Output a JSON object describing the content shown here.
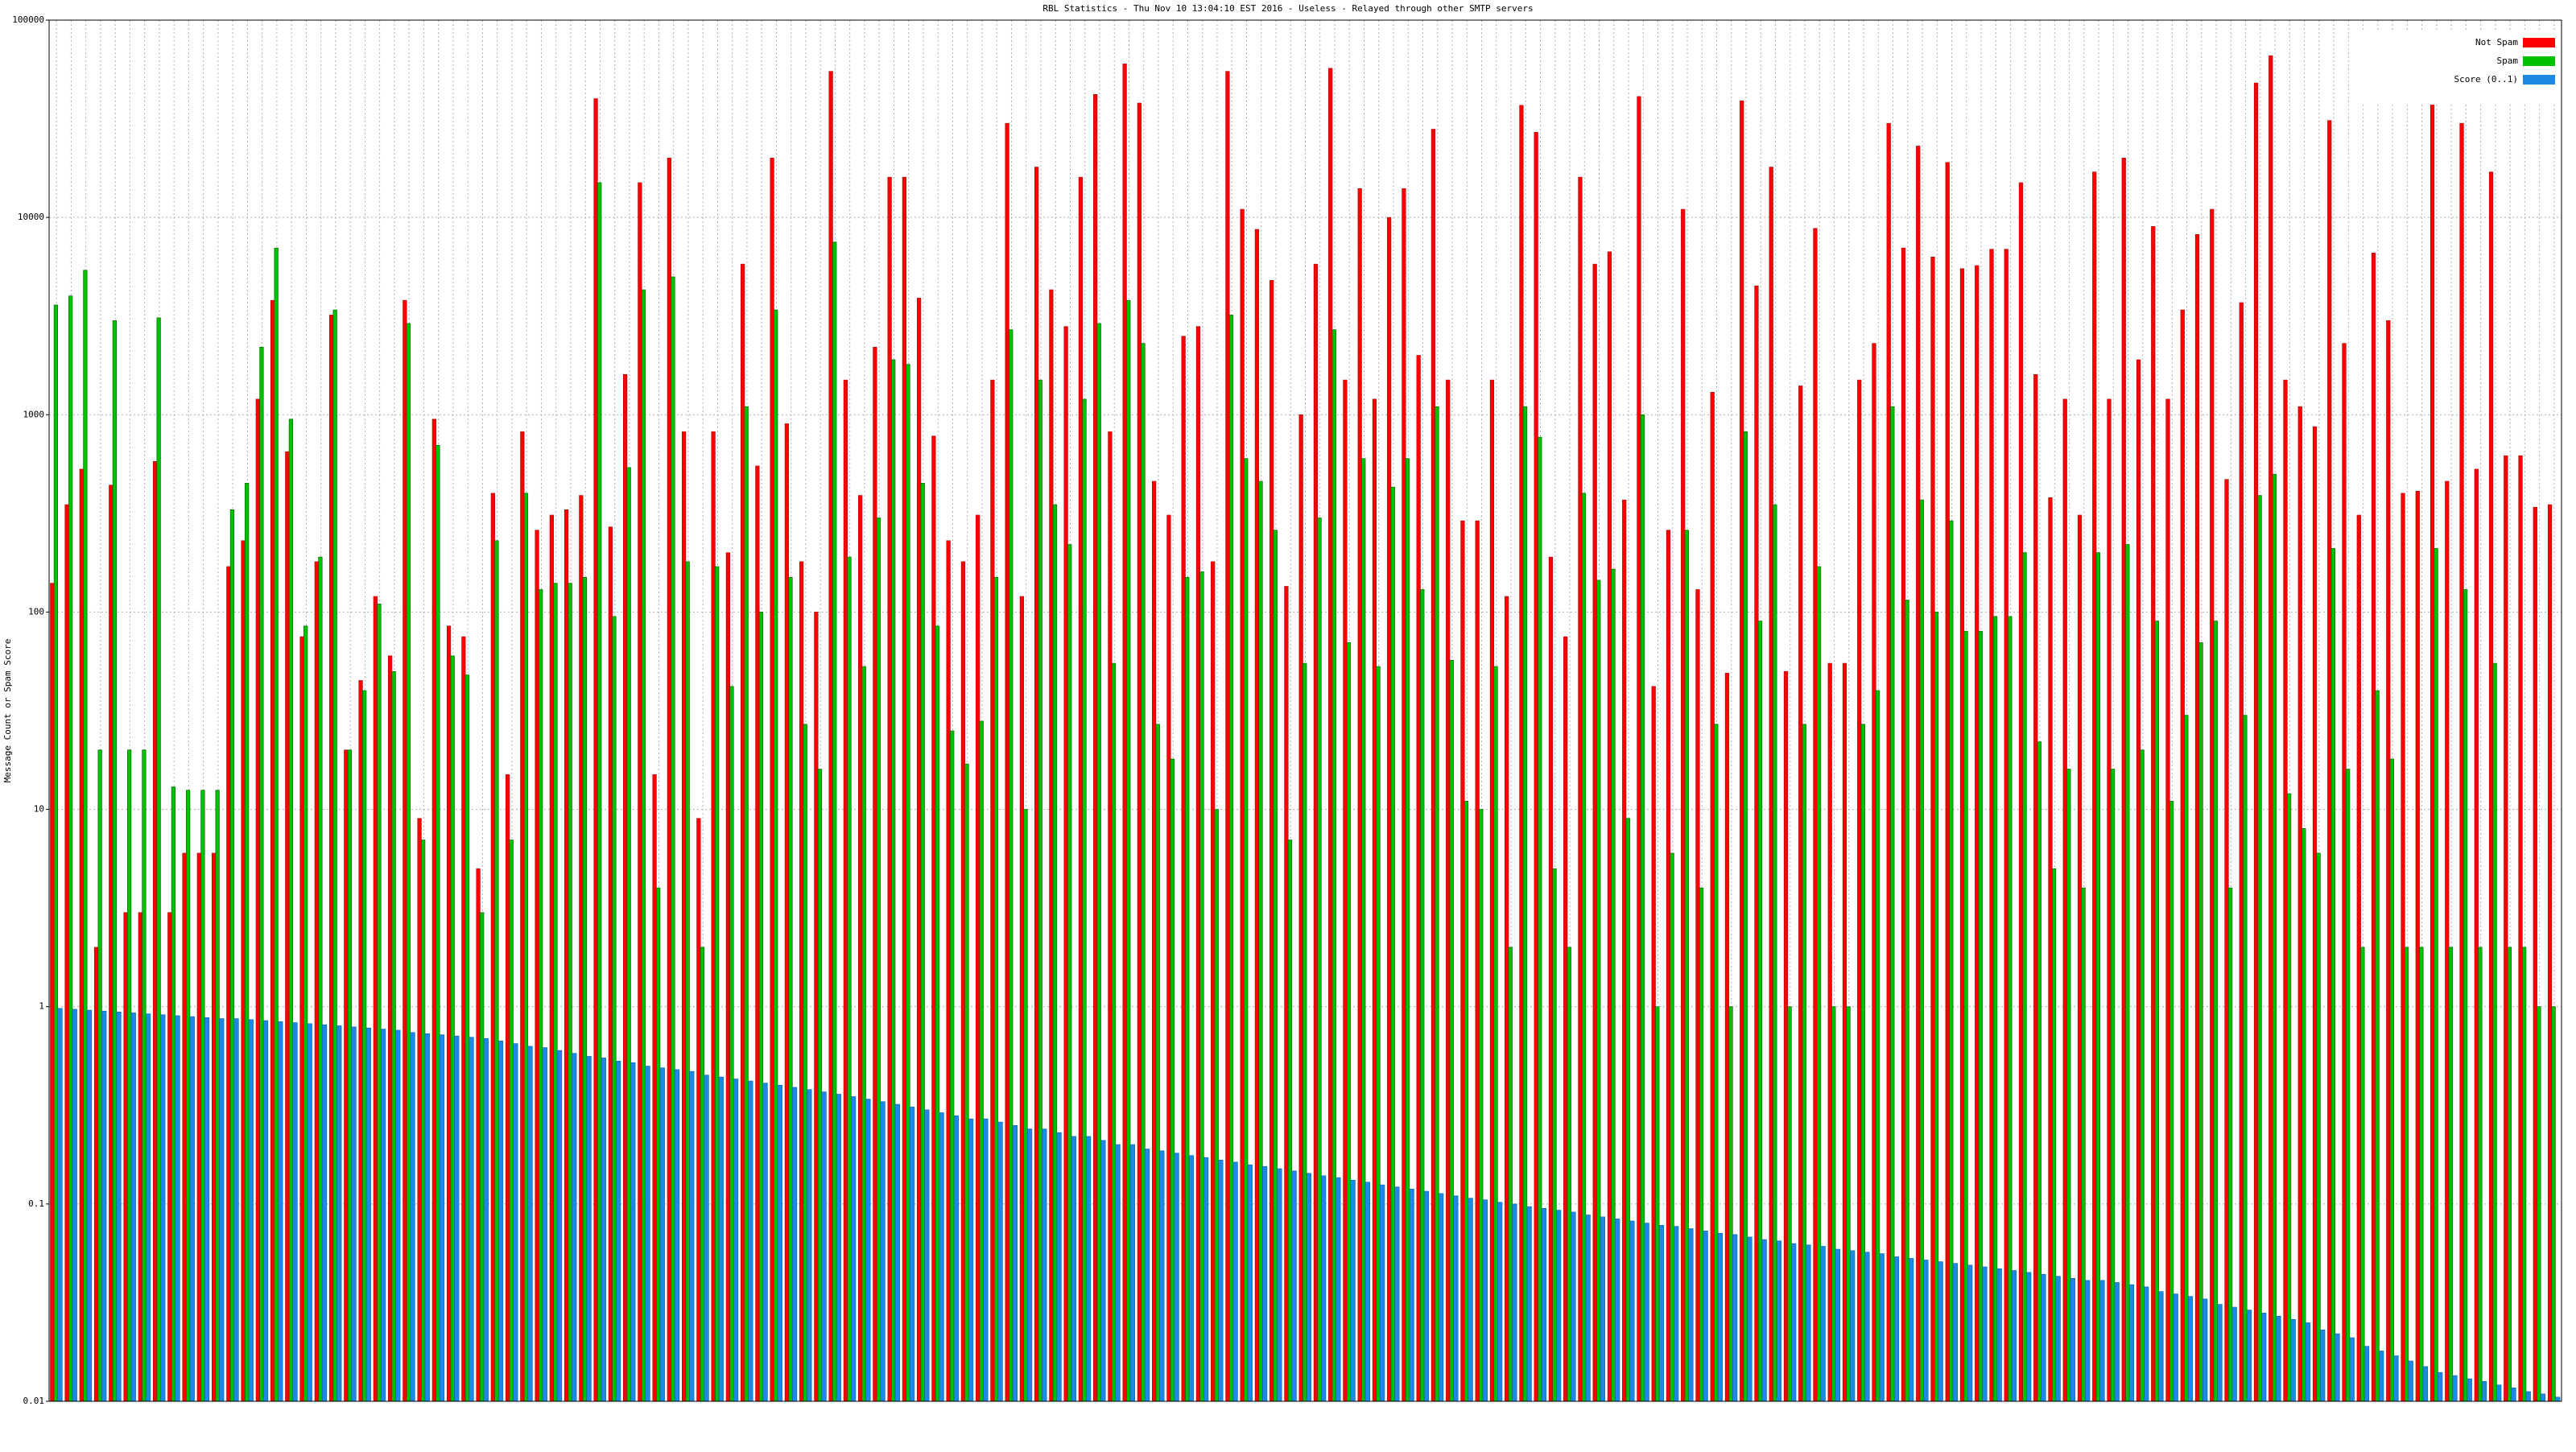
{
  "chart_data": {
    "type": "bar",
    "title": "RBL Statistics - Thu Nov 10 13:04:10 EST 2016 - Useless - Relayed through other SMTP servers",
    "y_label": "Message Count or Spam Score",
    "log_scale": true,
    "grid": true,
    "legend_position": "top-right",
    "ylim": [
      0.01,
      100000
    ],
    "yticks": [
      0.01,
      0.1,
      1,
      10,
      100,
      1000,
      10000,
      100000
    ],
    "series": [
      {
        "name": "Not Spam",
        "color": "#ff0000",
        "values": [
          140,
          350,
          530,
          2,
          440,
          3,
          3,
          580,
          3,
          6,
          6,
          6,
          170,
          230,
          1200,
          3800,
          650,
          75,
          180,
          3200,
          20,
          45,
          120,
          60,
          3800,
          9,
          950,
          85,
          75,
          5,
          400,
          15,
          820,
          260,
          310,
          330,
          390,
          40000,
          270,
          1600,
          15000,
          15,
          20000,
          820,
          9,
          820,
          200,
          5800,
          550,
          20000,
          900,
          180,
          100,
          55000,
          1500,
          390,
          2200,
          16000,
          16000,
          3900,
          780,
          230,
          180,
          310,
          1500,
          30000,
          120,
          18000,
          4300,
          2800,
          16000,
          42000,
          820,
          60000,
          38000,
          460,
          310,
          2500,
          2800,
          180,
          55000,
          11000,
          8700,
          4800,
          135,
          1000,
          5800,
          57000,
          1500,
          14000,
          1200,
          10000,
          14000,
          2000,
          28000,
          1500,
          290,
          290,
          1500,
          120,
          37000,
          27000,
          190,
          75,
          16000,
          5800,
          6700,
          370,
          41000,
          42,
          260,
          11000,
          130,
          1300,
          49,
          39000,
          4500,
          18000,
          50,
          1400,
          8800,
          55,
          55,
          1500,
          2300,
          30000,
          7000,
          23000,
          6300,
          19000,
          5500,
          5700,
          6900,
          6900,
          15000,
          1600,
          380,
          1200,
          310,
          17000,
          1200,
          20000,
          1900,
          9000,
          1200,
          3400,
          8200,
          11000,
          470,
          3700,
          48000,
          66000,
          1500,
          1100,
          870,
          31000,
          2300,
          310,
          6600,
          3000,
          400,
          410,
          45000,
          460,
          30000,
          530,
          17000,
          620,
          620,
          340,
          350
        ]
      },
      {
        "name": "Spam",
        "color": "#00c000",
        "values": [
          3600,
          4000,
          5400,
          20,
          3000,
          20,
          20,
          3100,
          13,
          12.5,
          12.5,
          12.5,
          330,
          450,
          2200,
          7000,
          950,
          85,
          190,
          3400,
          20,
          40,
          110,
          50,
          2900,
          7,
          700,
          60,
          48,
          3,
          230,
          7,
          400,
          130,
          140,
          140,
          150,
          15000,
          95,
          540,
          4300,
          4,
          5000,
          180,
          2,
          170,
          42,
          1100,
          100,
          3400,
          150,
          27,
          16,
          7500,
          190,
          53,
          300,
          1900,
          1800,
          450,
          85,
          25,
          17,
          28,
          150,
          2700,
          10,
          1500,
          350,
          220,
          1200,
          2900,
          55,
          3800,
          2300,
          27,
          18,
          150,
          160,
          10,
          3200,
          600,
          460,
          260,
          7,
          55,
          300,
          2700,
          70,
          600,
          53,
          430,
          600,
          130,
          1100,
          57,
          11,
          10,
          53,
          2,
          1100,
          770,
          5,
          2,
          400,
          145,
          165,
          9,
          1000,
          1,
          6,
          260,
          4,
          27,
          1,
          820,
          90,
          350,
          1,
          27,
          170,
          1,
          1,
          27,
          40,
          1100,
          115,
          370,
          100,
          290,
          80,
          80,
          95,
          95,
          200,
          22,
          5,
          16,
          4,
          200,
          16,
          220,
          20,
          90,
          11,
          30,
          70,
          90,
          4,
          30,
          390,
          500,
          12,
          8,
          6,
          210,
          16,
          2,
          40,
          18,
          2,
          2,
          210,
          2,
          130,
          2,
          55,
          2,
          2,
          1,
          1
        ]
      },
      {
        "name": "Score (0..1)",
        "color": "#1e88e5",
        "values": [
          0.98,
          0.97,
          0.96,
          0.95,
          0.94,
          0.93,
          0.92,
          0.91,
          0.9,
          0.89,
          0.88,
          0.87,
          0.87,
          0.86,
          0.85,
          0.84,
          0.83,
          0.82,
          0.81,
          0.8,
          0.79,
          0.78,
          0.77,
          0.76,
          0.74,
          0.73,
          0.72,
          0.71,
          0.7,
          0.69,
          0.67,
          0.65,
          0.63,
          0.62,
          0.6,
          0.58,
          0.56,
          0.55,
          0.53,
          0.52,
          0.5,
          0.49,
          0.48,
          0.47,
          0.45,
          0.44,
          0.43,
          0.42,
          0.41,
          0.4,
          0.39,
          0.38,
          0.37,
          0.36,
          0.35,
          0.34,
          0.33,
          0.32,
          0.31,
          0.3,
          0.29,
          0.28,
          0.27,
          0.27,
          0.26,
          0.25,
          0.24,
          0.24,
          0.23,
          0.22,
          0.22,
          0.21,
          0.2,
          0.2,
          0.19,
          0.186,
          0.181,
          0.176,
          0.172,
          0.167,
          0.163,
          0.158,
          0.155,
          0.151,
          0.147,
          0.143,
          0.139,
          0.136,
          0.132,
          0.129,
          0.125,
          0.122,
          0.119,
          0.116,
          0.113,
          0.11,
          0.107,
          0.105,
          0.102,
          0.1,
          0.097,
          0.095,
          0.093,
          0.091,
          0.088,
          0.086,
          0.084,
          0.082,
          0.08,
          0.078,
          0.077,
          0.075,
          0.073,
          0.071,
          0.07,
          0.068,
          0.066,
          0.065,
          0.063,
          0.062,
          0.061,
          0.059,
          0.058,
          0.057,
          0.056,
          0.054,
          0.053,
          0.052,
          0.051,
          0.05,
          0.049,
          0.048,
          0.047,
          0.046,
          0.045,
          0.044,
          0.043,
          0.042,
          0.041,
          0.041,
          0.04,
          0.039,
          0.038,
          0.036,
          0.035,
          0.034,
          0.033,
          0.031,
          0.03,
          0.029,
          0.028,
          0.027,
          0.026,
          0.025,
          0.023,
          0.022,
          0.021,
          0.019,
          0.018,
          0.017,
          0.016,
          0.015,
          0.014,
          0.0135,
          0.013,
          0.0126,
          0.0121,
          0.0117,
          0.0112,
          0.0109,
          0.0105
        ]
      }
    ]
  }
}
